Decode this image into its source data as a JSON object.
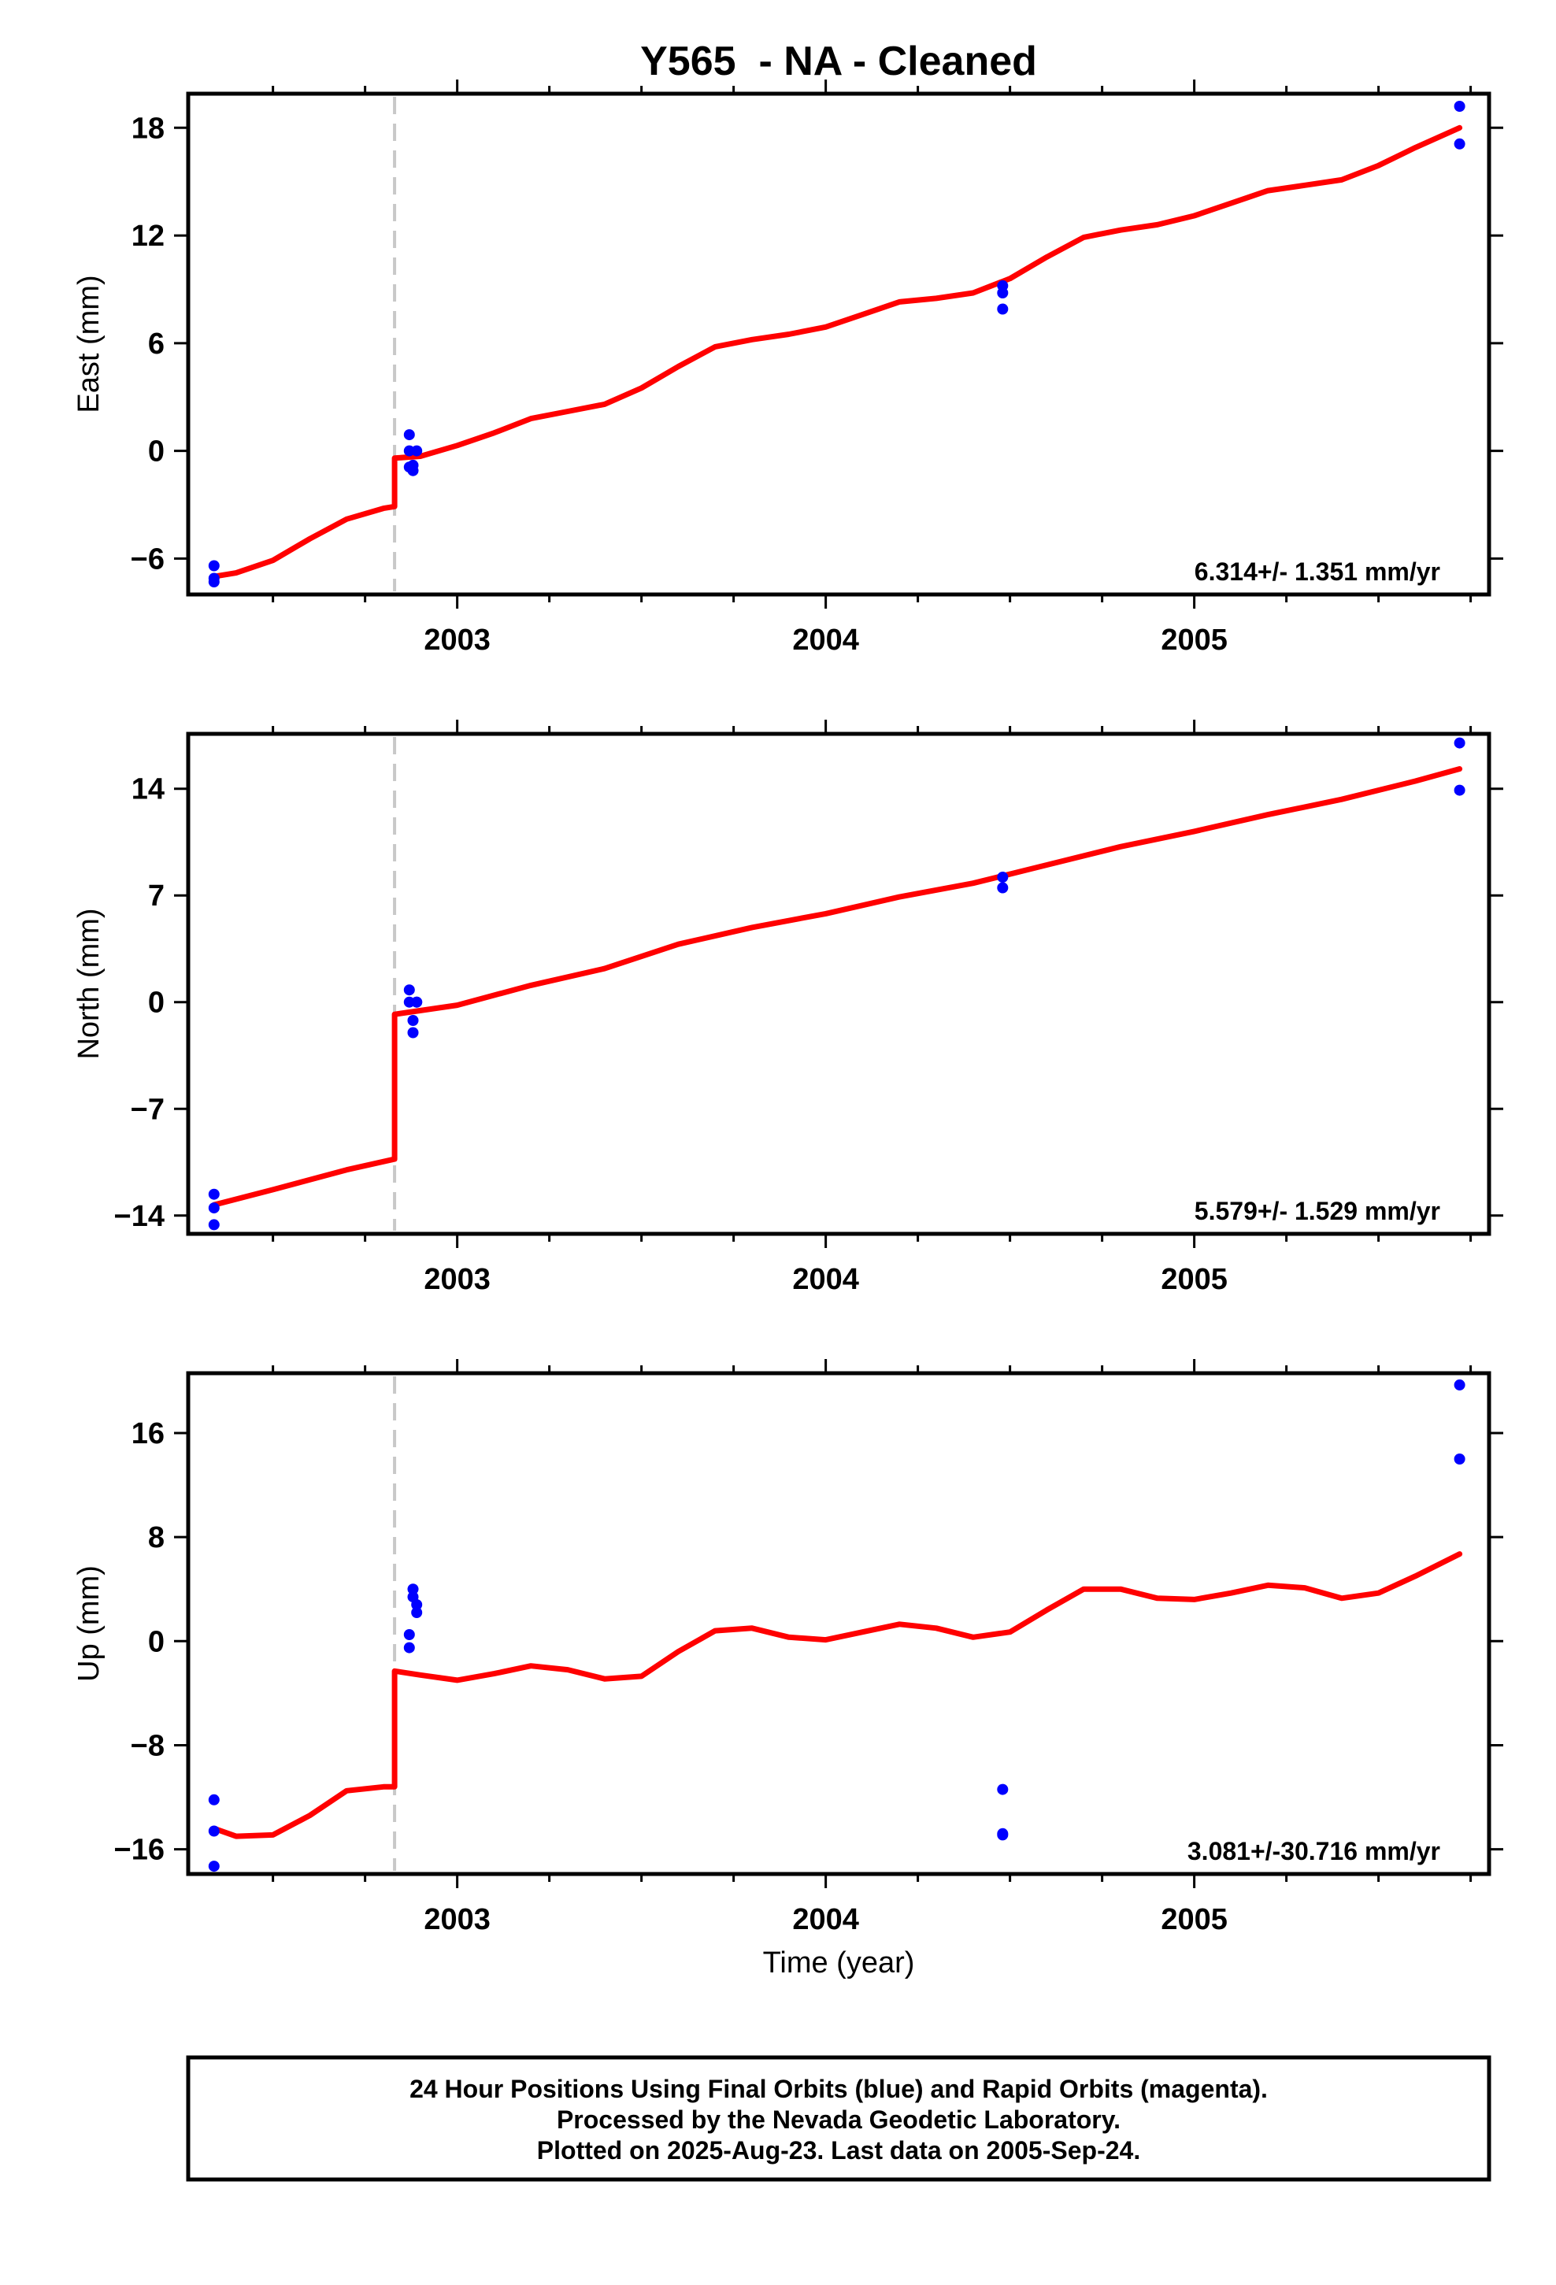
{
  "chart_data": {
    "type": "scatter",
    "title": "Y565  - NA - Cleaned",
    "xlabel": "Time (year)",
    "xlim": [
      2002.27,
      2005.8
    ],
    "x_ticks": [
      2003,
      2004,
      2005
    ],
    "offset_epoch": 2002.83,
    "colors": {
      "points": "#0000ff",
      "model": "#ff0000",
      "offset_line": "#c8c8c8"
    },
    "panels": [
      {
        "ylabel": "East (mm)",
        "ylim": [
          -8.0,
          19.9
        ],
        "y_ticks": [
          -6,
          0,
          6,
          12,
          18
        ],
        "y_tick_labels": [
          "−6",
          "0",
          "6",
          "12",
          "18"
        ],
        "rate": "6.314+/- 1.351 mm/yr",
        "points": {
          "x": [
            2002.34,
            2002.34,
            2002.34,
            2002.87,
            2002.87,
            2002.87,
            2002.88,
            2002.88,
            2002.89,
            2004.48,
            2004.48,
            2004.48,
            2005.72,
            2005.72
          ],
          "y": [
            -6.4,
            -7.1,
            -7.3,
            0.9,
            0.0,
            -0.9,
            -1.1,
            -0.8,
            0.0,
            9.2,
            8.8,
            7.9,
            19.2,
            17.1
          ]
        },
        "model": {
          "x": [
            2002.34,
            2002.4,
            2002.5,
            2002.6,
            2002.7,
            2002.8,
            2002.83,
            2002.83,
            2002.9,
            2003.0,
            2003.1,
            2003.2,
            2003.3,
            2003.4,
            2003.5,
            2003.6,
            2003.7,
            2003.8,
            2003.9,
            2004.0,
            2004.1,
            2004.2,
            2004.3,
            2004.4,
            2004.5,
            2004.6,
            2004.7,
            2004.8,
            2004.9,
            2005.0,
            2005.1,
            2005.2,
            2005.3,
            2005.4,
            2005.5,
            2005.6,
            2005.72
          ],
          "y": [
            -7.0,
            -6.8,
            -6.1,
            -4.9,
            -3.8,
            -3.2,
            -3.1,
            -0.4,
            -0.3,
            0.3,
            1.0,
            1.8,
            2.2,
            2.6,
            3.5,
            4.7,
            5.8,
            6.2,
            6.5,
            6.9,
            7.6,
            8.3,
            8.5,
            8.8,
            9.6,
            10.8,
            11.9,
            12.3,
            12.6,
            13.1,
            13.8,
            14.5,
            14.8,
            15.1,
            15.9,
            16.9,
            18.0
          ]
        }
      },
      {
        "ylabel": "North (mm)",
        "ylim": [
          -15.2,
          17.6
        ],
        "y_ticks": [
          -14,
          -7,
          0,
          7,
          14
        ],
        "y_tick_labels": [
          "−14",
          "−7",
          "0",
          "7",
          "14"
        ],
        "rate": "5.579+/- 1.529 mm/yr",
        "points": {
          "x": [
            2002.34,
            2002.34,
            2002.34,
            2002.87,
            2002.87,
            2002.88,
            2002.88,
            2002.89,
            2002.89,
            2004.48,
            2004.48,
            2005.72,
            2005.72
          ],
          "y": [
            -12.6,
            -13.5,
            -14.6,
            0.8,
            0.0,
            -1.2,
            -2.0,
            0.0,
            0.0,
            8.2,
            7.5,
            17.0,
            13.9
          ]
        },
        "model": {
          "x": [
            2002.34,
            2002.5,
            2002.7,
            2002.83,
            2002.83,
            2003.0,
            2003.2,
            2003.4,
            2003.6,
            2003.8,
            2004.0,
            2004.2,
            2004.4,
            2004.6,
            2004.8,
            2005.0,
            2005.2,
            2005.4,
            2005.6,
            2005.72
          ],
          "y": [
            -13.3,
            -12.3,
            -11.0,
            -10.3,
            -0.8,
            -0.2,
            1.1,
            2.2,
            3.8,
            4.9,
            5.8,
            6.9,
            7.8,
            9.0,
            10.2,
            11.2,
            12.3,
            13.3,
            14.5,
            15.3
          ]
        }
      },
      {
        "ylabel": "Up (mm)",
        "ylim": [
          -17.9,
          20.6
        ],
        "y_ticks": [
          -16,
          -8,
          0,
          8,
          16
        ],
        "y_tick_labels": [
          "−16",
          "−8",
          "0",
          "8",
          "16"
        ],
        "rate": "3.081+/-30.716 mm/yr",
        "points": {
          "x": [
            2002.34,
            2002.34,
            2002.34,
            2002.87,
            2002.87,
            2002.88,
            2002.88,
            2002.89,
            2002.89,
            2004.48,
            2004.48,
            2004.48,
            2005.72,
            2005.72
          ],
          "y": [
            -12.2,
            -14.6,
            -17.3,
            -0.5,
            0.5,
            4.0,
            3.4,
            2.8,
            2.2,
            -11.4,
            -14.8,
            -14.9,
            19.7,
            14.0
          ]
        },
        "model": {
          "x": [
            2002.34,
            2002.4,
            2002.5,
            2002.6,
            2002.7,
            2002.8,
            2002.83,
            2002.83,
            2002.9,
            2003.0,
            2003.1,
            2003.2,
            2003.3,
            2003.4,
            2003.5,
            2003.6,
            2003.7,
            2003.8,
            2003.9,
            2004.0,
            2004.1,
            2004.2,
            2004.3,
            2004.4,
            2004.5,
            2004.6,
            2004.7,
            2004.8,
            2004.9,
            2005.0,
            2005.1,
            2005.2,
            2005.3,
            2005.4,
            2005.5,
            2005.6,
            2005.72
          ],
          "y": [
            -14.4,
            -15.0,
            -14.9,
            -13.4,
            -11.5,
            -11.2,
            -11.2,
            -2.3,
            -2.6,
            -3.0,
            -2.5,
            -1.9,
            -2.2,
            -2.9,
            -2.7,
            -0.8,
            0.8,
            1.0,
            0.3,
            0.1,
            0.7,
            1.3,
            1.0,
            0.3,
            0.7,
            2.4,
            4.0,
            4.0,
            3.3,
            3.2,
            3.7,
            4.3,
            4.1,
            3.3,
            3.7,
            5.0,
            6.7
          ]
        }
      }
    ]
  },
  "footer": {
    "line1": "24 Hour Positions Using Final Orbits (blue) and Rapid Orbits (magenta).",
    "line2": "Processed by the Nevada Geodetic Laboratory.",
    "line3": "Plotted on 2025-Aug-23. Last data on 2005-Sep-24."
  }
}
